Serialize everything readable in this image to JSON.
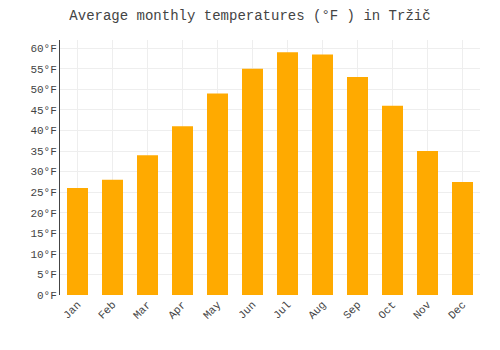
{
  "chart_data": {
    "type": "bar",
    "title": "Average monthly temperatures (°F ) in Tržič",
    "categories": [
      "Jan",
      "Feb",
      "Mar",
      "Apr",
      "May",
      "Jun",
      "Jul",
      "Aug",
      "Sep",
      "Oct",
      "Nov",
      "Dec"
    ],
    "values": [
      26.0,
      28.0,
      34.0,
      41.0,
      49.0,
      55.0,
      59.0,
      58.5,
      53.0,
      46.0,
      35.0,
      27.5
    ],
    "color": "#FFAA00",
    "ylim": [
      0,
      62
    ],
    "yticks": [
      {
        "value": 0,
        "label": "0°F"
      },
      {
        "value": 5,
        "label": "5°F"
      },
      {
        "value": 10,
        "label": "10°F"
      },
      {
        "value": 15,
        "label": "15°F"
      },
      {
        "value": 20,
        "label": "20°F"
      },
      {
        "value": 25,
        "label": "25°F"
      },
      {
        "value": 30,
        "label": "30°F"
      },
      {
        "value": 35,
        "label": "35°F"
      },
      {
        "value": 40,
        "label": "40°F"
      },
      {
        "value": 45,
        "label": "45°F"
      },
      {
        "value": 50,
        "label": "50°F"
      },
      {
        "value": 55,
        "label": "55°F"
      },
      {
        "value": 60,
        "label": "60°F"
      }
    ],
    "grid": true
  }
}
